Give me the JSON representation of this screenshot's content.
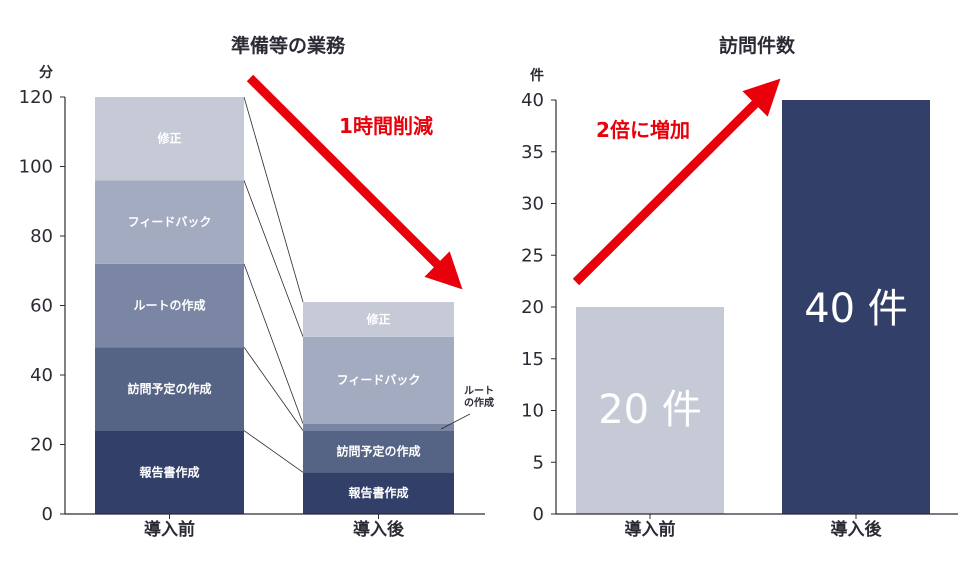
{
  "chart_data": [
    {
      "type": "bar",
      "stacked": true,
      "title": "準備等の業務",
      "unit": "分",
      "ylim": [
        0,
        120
      ],
      "yticks": [
        0,
        20,
        40,
        60,
        80,
        100,
        120
      ],
      "categories": [
        "導入前",
        "導入後"
      ],
      "series": [
        {
          "name": "報告書作成",
          "values": [
            24,
            12
          ],
          "color": "#323f68"
        },
        {
          "name": "訪問予定の作成",
          "values": [
            24,
            12
          ],
          "color": "#556385"
        },
        {
          "name": "ルートの作成",
          "values": [
            24,
            2
          ],
          "color": "#7a86a3"
        },
        {
          "name": "フィードバック",
          "values": [
            24,
            25
          ],
          "color": "#a3abc0"
        },
        {
          "name": "修正",
          "values": [
            24,
            10
          ],
          "color": "#c6cad7"
        }
      ],
      "side_label": [
        "ルート",
        "の作成"
      ],
      "annotation": "1時間削減"
    },
    {
      "type": "bar",
      "title": "訪問件数",
      "unit": "件",
      "ylim": [
        0,
        40
      ],
      "yticks": [
        0,
        5,
        10,
        15,
        20,
        25,
        30,
        35,
        40
      ],
      "categories": [
        "導入前",
        "導入後"
      ],
      "values": [
        20,
        40
      ],
      "colors": [
        "#c6cad7",
        "#323f68"
      ],
      "value_labels": [
        "20 件",
        "40 件"
      ],
      "annotation": "2倍に増加"
    }
  ],
  "colors": {
    "axis": "#2b2b35",
    "arrow": "#e8000b",
    "connector": "#2b2b35"
  }
}
